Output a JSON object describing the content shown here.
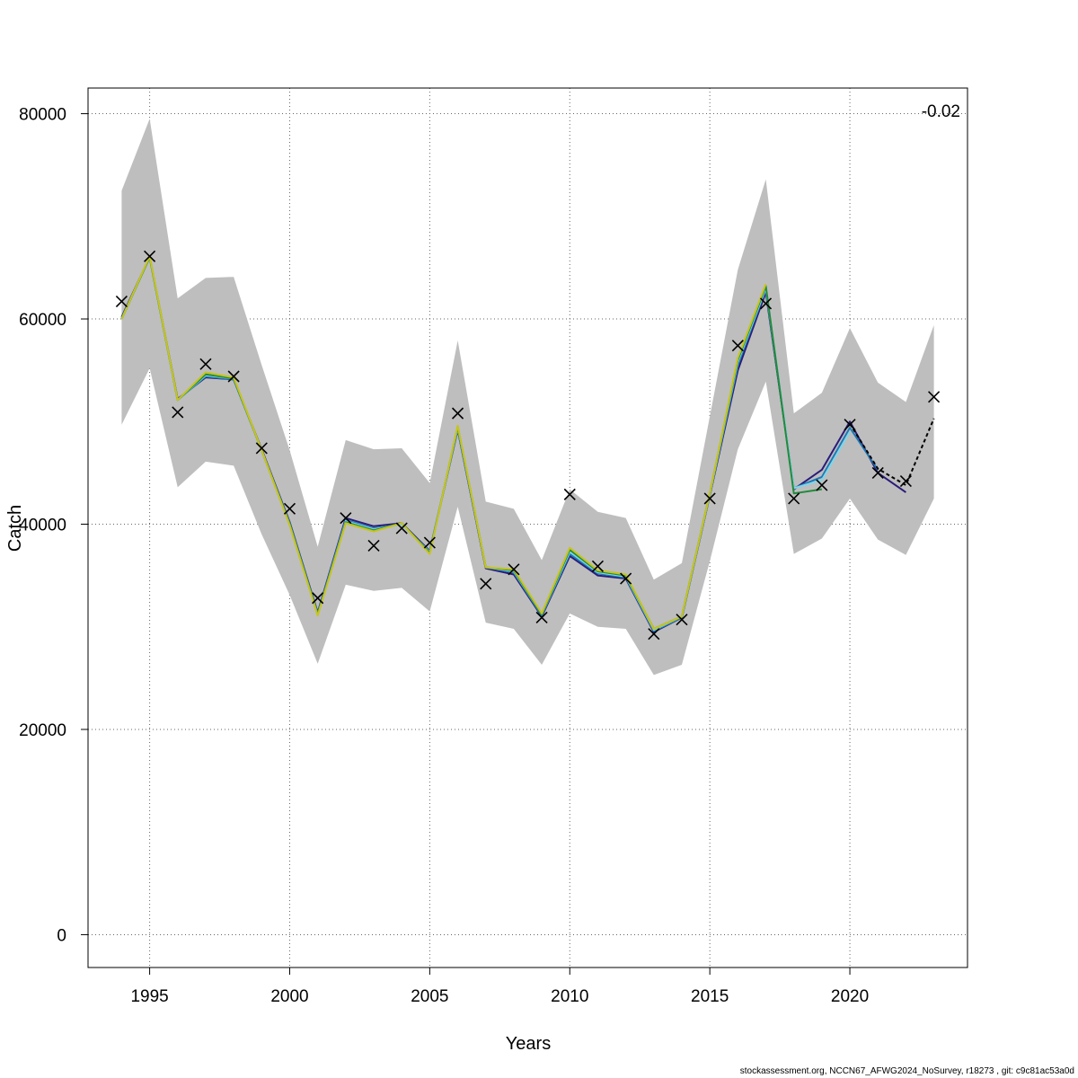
{
  "chart_data": {
    "type": "line",
    "xlabel": "Years",
    "ylabel": "Catch",
    "xlim": [
      1992.8,
      2024.2
    ],
    "ylim": [
      -3200,
      82500
    ],
    "x_ticks": [
      1995,
      2000,
      2005,
      2010,
      2015,
      2020
    ],
    "y_ticks": [
      0,
      20000,
      40000,
      60000,
      80000
    ],
    "grid": true,
    "corner_label": "-0.02",
    "footer": "stockassessment.org, NCCN67_AFWG2024_NoSurvey, r18273 , git: c9c81ac53a0d",
    "colors": {
      "band": "#bebebe",
      "observed": "#000000",
      "final_fit": "#000000"
    },
    "band": {
      "years": [
        1994,
        1995,
        1996,
        1997,
        1998,
        1999,
        2000,
        2001,
        2002,
        2003,
        2004,
        2005,
        2006,
        2007,
        2008,
        2009,
        2010,
        2011,
        2012,
        2013,
        2014,
        2015,
        2016,
        2017,
        2018,
        2019,
        2020,
        2021,
        2022,
        2023
      ],
      "upper": [
        72500,
        79500,
        62000,
        64000,
        64100,
        55500,
        47200,
        37800,
        48200,
        47300,
        47400,
        44000,
        57900,
        42200,
        41500,
        36500,
        43400,
        41200,
        40600,
        34600,
        36200,
        50500,
        64800,
        73600,
        50800,
        52800,
        59100,
        53800,
        51900,
        59400
      ],
      "lower": [
        49700,
        55200,
        43600,
        46100,
        45700,
        39000,
        33100,
        26400,
        34100,
        33500,
        33800,
        31500,
        41700,
        30400,
        29800,
        26300,
        31300,
        30000,
        29800,
        25300,
        26300,
        36400,
        47300,
        53900,
        37100,
        38600,
        42500,
        38500,
        37000,
        42500
      ]
    },
    "observed": {
      "years": [
        1994,
        1995,
        1996,
        1997,
        1998,
        1999,
        2000,
        2001,
        2002,
        2003,
        2004,
        2005,
        2006,
        2007,
        2008,
        2009,
        2010,
        2011,
        2012,
        2013,
        2014,
        2015,
        2016,
        2017,
        2018,
        2019,
        2020,
        2021,
        2022,
        2023
      ],
      "values": [
        61700,
        66100,
        50900,
        55600,
        54400,
        47400,
        41500,
        32800,
        40600,
        37900,
        39600,
        38200,
        50800,
        34200,
        35600,
        30900,
        42900,
        35900,
        34700,
        29300,
        30700,
        42500,
        57400,
        61500,
        42500,
        43800,
        49700,
        45000,
        44200,
        52400
      ]
    },
    "series": [
      {
        "color": "#2b1b7a",
        "years": [
          1994,
          1995,
          1996,
          1997,
          1998,
          1999,
          2000,
          2001,
          2002,
          2003,
          2004,
          2005,
          2006,
          2007,
          2008,
          2009,
          2010,
          2011,
          2012,
          2013,
          2014,
          2015,
          2016,
          2017,
          2018,
          2019,
          2020,
          2021,
          2022
        ],
        "values": [
          60200,
          66000,
          52200,
          54300,
          54100,
          47300,
          40200,
          31400,
          40600,
          39800,
          40100,
          37400,
          49200,
          35700,
          35100,
          31000,
          36900,
          35000,
          34700,
          29500,
          30900,
          42800,
          55000,
          62600,
          43400,
          45300,
          50000,
          45000,
          43100
        ]
      },
      {
        "color": "#1f78b4",
        "years": [
          1994,
          1995,
          1996,
          1997,
          1998,
          1999,
          2000,
          2001,
          2002,
          2003,
          2004,
          2005,
          2006,
          2007,
          2008,
          2009,
          2010,
          2011,
          2012,
          2013,
          2014,
          2015,
          2016,
          2017,
          2018,
          2019,
          2020,
          2021
        ],
        "values": [
          60100,
          66000,
          52100,
          54400,
          54100,
          47200,
          40100,
          31300,
          40400,
          39600,
          40000,
          37300,
          49300,
          35800,
          35300,
          31100,
          37100,
          35200,
          34800,
          29600,
          30900,
          42900,
          55500,
          62900,
          43500,
          44600,
          49400,
          45300
        ]
      },
      {
        "color": "#7fd6e8",
        "years": [
          1994,
          1995,
          1996,
          1997,
          1998,
          1999,
          2000,
          2001,
          2002,
          2003,
          2004,
          2005,
          2006,
          2007,
          2008,
          2009,
          2010,
          2011,
          2012,
          2013,
          2014,
          2015,
          2016,
          2017,
          2018,
          2019,
          2020
        ],
        "values": [
          60000,
          66000,
          52100,
          54500,
          54200,
          47200,
          40000,
          31200,
          40300,
          39500,
          40000,
          37300,
          49400,
          35800,
          35400,
          31200,
          37300,
          35300,
          34900,
          29700,
          31000,
          42900,
          55800,
          63000,
          43500,
          44300,
          49000
        ]
      },
      {
        "color": "#228b3b",
        "years": [
          1994,
          1995,
          1996,
          1997,
          1998,
          1999,
          2000,
          2001,
          2002,
          2003,
          2004,
          2005,
          2006,
          2007,
          2008,
          2009,
          2010,
          2011,
          2012,
          2013,
          2014,
          2015,
          2016,
          2017,
          2018,
          2019
        ],
        "values": [
          60000,
          66000,
          52100,
          54600,
          54200,
          47200,
          40000,
          31200,
          40200,
          39400,
          40100,
          37200,
          49500,
          35800,
          35500,
          31200,
          37500,
          35400,
          35000,
          29800,
          31000,
          43000,
          56000,
          63200,
          43000,
          43400
        ]
      },
      {
        "color": "#c8c41a",
        "years": [
          1994,
          1995,
          1996,
          1997,
          1998,
          1999,
          2000,
          2001,
          2002,
          2003,
          2004,
          2005,
          2006,
          2007,
          2008,
          2009,
          2010,
          2011,
          2012,
          2013,
          2014,
          2015,
          2016,
          2017
        ],
        "values": [
          60000,
          66100,
          52100,
          54800,
          54300,
          47200,
          39900,
          31100,
          40100,
          39300,
          40100,
          37100,
          49600,
          35800,
          35600,
          31300,
          37700,
          35500,
          35100,
          29800,
          31000,
          43000,
          56200,
          63400
        ]
      }
    ],
    "final_fit": {
      "years": [
        2020,
        2021,
        2022,
        2023
      ],
      "values": [
        49800,
        45400,
        43800,
        50300
      ]
    }
  }
}
